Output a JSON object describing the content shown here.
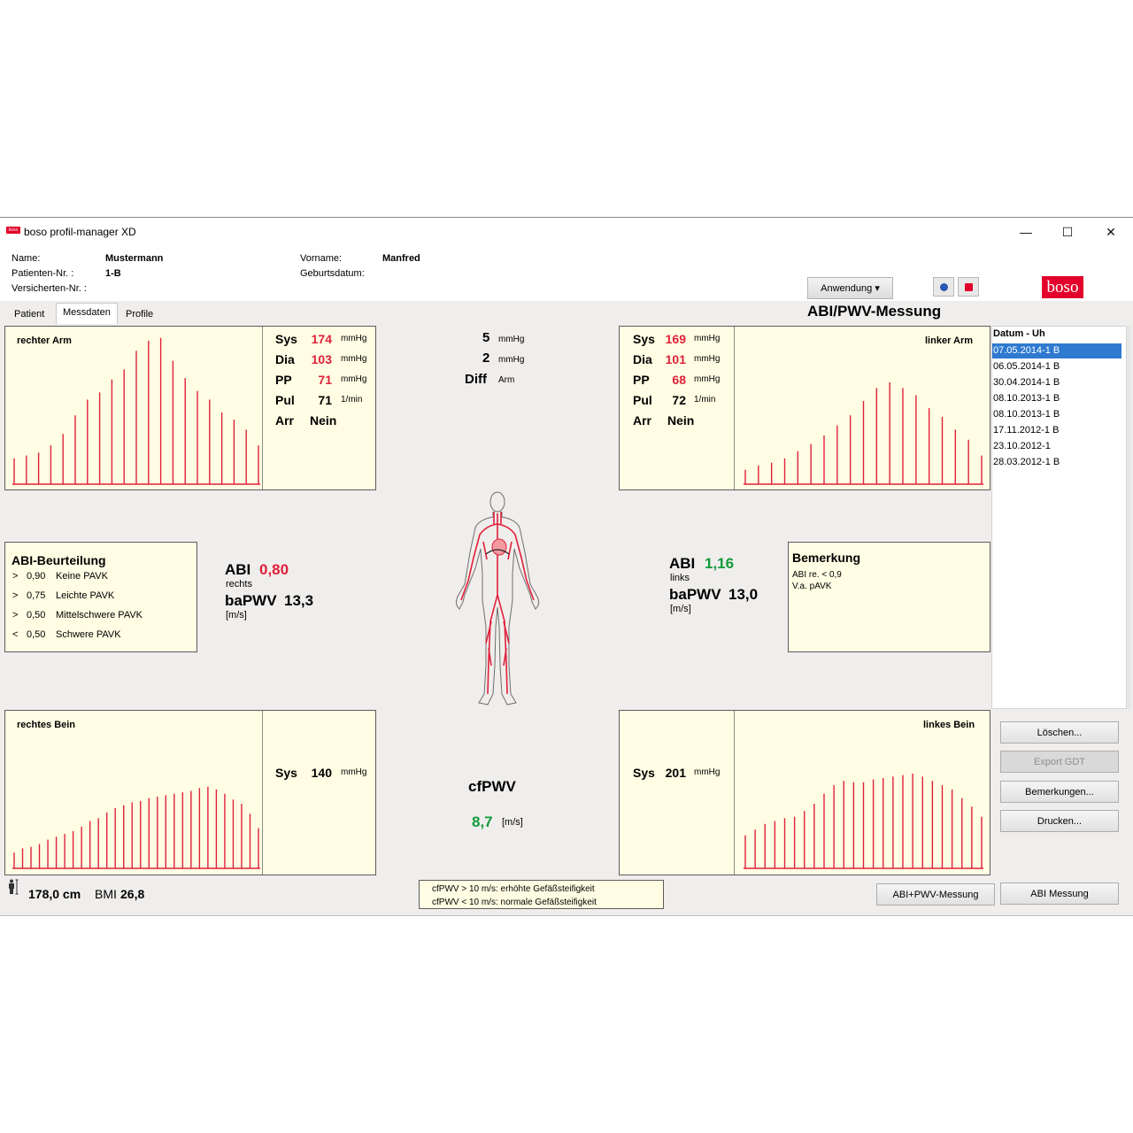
{
  "window": {
    "title": "boso profil-manager XD",
    "logo_mini_text": "boso",
    "controls": {
      "minimize": "—",
      "maximize": "☐",
      "close": "✕"
    }
  },
  "patient": {
    "name_label": "Name:",
    "name_value": "Mustermann",
    "patient_nr_label": "Patienten-Nr. :",
    "patient_nr_value": "1-B",
    "versicherten_label": "Versicherten-Nr. :",
    "vorname_label": "Vorname:",
    "vorname_value": "Manfred",
    "geburtsdatum_label": "Geburtsdatum:"
  },
  "toolbar": {
    "anwendung_label": "Anwendung ▾",
    "brand_logo": "boso",
    "app_title": "ABI/PWV-Messung",
    "help_icon": "help-icon",
    "info_icon": "info-icon"
  },
  "tabs": [
    {
      "label": "Patient",
      "active": false
    },
    {
      "label": "Messdaten",
      "active": true
    },
    {
      "label": "Profile",
      "active": false
    }
  ],
  "right_arm": {
    "label": "rechter Arm",
    "sys": {
      "key": "Sys",
      "value": "174",
      "unit": "mmHg"
    },
    "dia": {
      "key": "Dia",
      "value": "103",
      "unit": "mmHg"
    },
    "pp": {
      "key": "PP",
      "value": "71",
      "unit": "mmHg"
    },
    "pul": {
      "key": "Pul",
      "value": "71",
      "unit": "1/min"
    },
    "arr": {
      "key": "Arr",
      "value": "Nein"
    },
    "bars": [
      0.18,
      0.2,
      0.22,
      0.27,
      0.35,
      0.48,
      0.59,
      0.64,
      0.73,
      0.8,
      0.93,
      1.0,
      1.02,
      0.86,
      0.74,
      0.65,
      0.59,
      0.5,
      0.45,
      0.38,
      0.27
    ]
  },
  "left_arm": {
    "label": "linker Arm",
    "sys": {
      "key": "Sys",
      "value": "169",
      "unit": "mmHg"
    },
    "dia": {
      "key": "Dia",
      "value": "101",
      "unit": "mmHg"
    },
    "pp": {
      "key": "PP",
      "value": "68",
      "unit": "mmHg"
    },
    "pul": {
      "key": "Pul",
      "value": "72",
      "unit": "1/min"
    },
    "arr": {
      "key": "Arr",
      "value": "Nein"
    },
    "bars": [
      0.1,
      0.13,
      0.15,
      0.18,
      0.23,
      0.28,
      0.34,
      0.41,
      0.48,
      0.58,
      0.67,
      0.71,
      0.67,
      0.62,
      0.53,
      0.47,
      0.38,
      0.31,
      0.2
    ]
  },
  "right_leg": {
    "label": "rechtes Bein",
    "sys": {
      "key": "Sys",
      "value": "140",
      "unit": "mmHg"
    },
    "bars": [
      0.11,
      0.14,
      0.15,
      0.17,
      0.2,
      0.22,
      0.24,
      0.26,
      0.29,
      0.33,
      0.35,
      0.39,
      0.42,
      0.44,
      0.46,
      0.47,
      0.49,
      0.5,
      0.51,
      0.52,
      0.53,
      0.54,
      0.56,
      0.57,
      0.55,
      0.52,
      0.48,
      0.45,
      0.38,
      0.28
    ]
  },
  "left_leg": {
    "label": "linkes Bein",
    "sys": {
      "key": "Sys",
      "value": "201",
      "unit": "mmHg"
    },
    "bars": [
      0.23,
      0.27,
      0.31,
      0.33,
      0.35,
      0.36,
      0.4,
      0.45,
      0.52,
      0.58,
      0.61,
      0.6,
      0.6,
      0.62,
      0.63,
      0.64,
      0.65,
      0.66,
      0.64,
      0.61,
      0.58,
      0.55,
      0.49,
      0.43,
      0.36
    ]
  },
  "diff": {
    "sys_diff": "5",
    "sys_unit": "mmHg",
    "dia_diff": "2",
    "dia_unit": "mmHg",
    "label": "Diff",
    "label_unit": "Arm"
  },
  "abi_scale": {
    "title": "ABI-Beurteilung",
    "rows": [
      {
        "op": ">",
        "value": "0,90",
        "text": "Keine PAVK"
      },
      {
        "op": ">",
        "value": "0,75",
        "text": "Leichte PAVK"
      },
      {
        "op": ">",
        "value": "0,50",
        "text": "Mittelschwere PAVK"
      },
      {
        "op": "<",
        "value": "0,50",
        "text": "Schwere PAVK"
      }
    ]
  },
  "abi_right": {
    "label": "ABI",
    "value": "0,80",
    "side": "rechts",
    "pwv_label": "baPWV",
    "pwv_value": "13,3",
    "unit": "[m/s]"
  },
  "abi_left": {
    "label": "ABI",
    "value": "1,16",
    "side": "links",
    "pwv_label": "baPWV",
    "pwv_value": "13,0",
    "unit": "[m/s]"
  },
  "remark": {
    "title": "Bemerkung",
    "lines": [
      "ABI re. < 0,9",
      "V.a. pAVK"
    ]
  },
  "cfpwv": {
    "label": "cfPWV",
    "value": "8,7",
    "unit": "[m/s]"
  },
  "history": {
    "header": "Datum - Uh",
    "items": [
      "07.05.2014-1 B",
      "06.05.2014-1 B",
      "30.04.2014-1 B",
      "08.10.2013-1 B",
      "08.10.2013-1 B",
      "17.11.2012-1 B",
      "23.10.2012-1",
      "28.03.2012-1 B"
    ],
    "selected_index": 0
  },
  "actions": {
    "loeschen": "Löschen...",
    "export_gdt": "Export GDT",
    "bemerkungen": "Bemerkungen...",
    "drucken": "Drucken...",
    "abi_pwv": "ABI+PWV-Messung",
    "abi": "ABI Messung"
  },
  "footer": {
    "height": "178,0 cm",
    "bmi_label": "BMI",
    "bmi_value": "26,8",
    "note_1": "cfPWV > 10 m/s: erhöhte Gefäßsteifigkeit",
    "note_2": "cfPWV < 10 m/s: normale Gefäßsteifigkeit"
  },
  "colors": {
    "accent_red": "#e0203a",
    "accent_green": "#139a3b",
    "panel_bg": "#fffde3",
    "selection": "#2f7ad0",
    "brand": "#e3002b"
  }
}
